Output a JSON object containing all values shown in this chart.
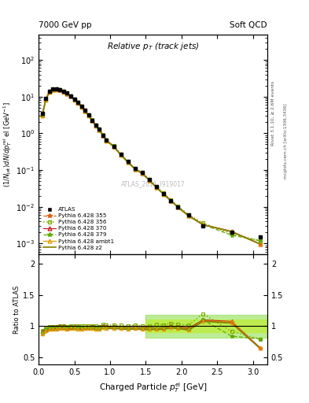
{
  "title_left": "7000 GeV pp",
  "title_right": "Soft QCD",
  "plot_title": "Relative p_{T} (track jets)",
  "watermark": "ATLAS_2011_I919017",
  "right_label_top": "Rivet 3.1.10, ≥ 2.6M events",
  "right_label_bottom": "mcplots.cern.ch [arXiv:1306.3436]",
  "atlas_x": [
    0.05,
    0.1,
    0.15,
    0.2,
    0.25,
    0.3,
    0.35,
    0.4,
    0.45,
    0.5,
    0.55,
    0.6,
    0.65,
    0.7,
    0.75,
    0.8,
    0.85,
    0.9,
    0.95,
    1.05,
    1.15,
    1.25,
    1.35,
    1.45,
    1.55,
    1.65,
    1.75,
    1.85,
    1.95,
    2.1,
    2.3,
    2.7,
    3.1
  ],
  "atlas_y": [
    3.5,
    9.0,
    14.0,
    16.0,
    16.5,
    15.5,
    14.0,
    12.5,
    10.5,
    8.5,
    7.0,
    5.5,
    4.2,
    3.2,
    2.3,
    1.7,
    1.3,
    0.9,
    0.65,
    0.45,
    0.27,
    0.17,
    0.11,
    0.085,
    0.055,
    0.035,
    0.023,
    0.015,
    0.01,
    0.006,
    0.003,
    0.002,
    0.0015
  ],
  "atlas_yerr": [
    0.2,
    0.3,
    0.4,
    0.4,
    0.4,
    0.4,
    0.4,
    0.3,
    0.3,
    0.25,
    0.2,
    0.15,
    0.12,
    0.09,
    0.07,
    0.05,
    0.04,
    0.025,
    0.018,
    0.013,
    0.008,
    0.005,
    0.003,
    0.0025,
    0.0015,
    0.001,
    0.0007,
    0.0005,
    0.0003,
    0.0002,
    0.0001,
    8e-05,
    6e-05
  ],
  "p355_x": [
    0.05,
    0.1,
    0.15,
    0.2,
    0.25,
    0.3,
    0.35,
    0.4,
    0.45,
    0.5,
    0.55,
    0.6,
    0.65,
    0.7,
    0.75,
    0.8,
    0.85,
    0.9,
    0.95,
    1.05,
    1.15,
    1.25,
    1.35,
    1.45,
    1.55,
    1.65,
    1.75,
    1.85,
    1.95,
    2.1,
    2.3,
    2.7,
    3.1
  ],
  "p355_y": [
    3.15,
    8.55,
    13.65,
    15.7,
    16.2,
    15.4,
    13.9,
    12.2,
    10.35,
    8.35,
    6.85,
    5.4,
    4.12,
    3.15,
    2.27,
    1.66,
    1.26,
    0.9,
    0.645,
    0.445,
    0.265,
    0.165,
    0.107,
    0.082,
    0.053,
    0.034,
    0.022,
    0.0148,
    0.0097,
    0.0057,
    0.0033,
    0.0021,
    0.00098
  ],
  "p356_x": [
    0.05,
    0.1,
    0.15,
    0.2,
    0.25,
    0.3,
    0.35,
    0.4,
    0.45,
    0.5,
    0.55,
    0.6,
    0.65,
    0.7,
    0.75,
    0.8,
    0.85,
    0.9,
    0.95,
    1.05,
    1.15,
    1.25,
    1.35,
    1.45,
    1.55,
    1.65,
    1.75,
    1.85,
    1.95,
    2.1,
    2.3,
    2.7,
    3.1
  ],
  "p356_y": [
    3.25,
    8.7,
    13.9,
    15.95,
    16.45,
    15.65,
    14.1,
    12.4,
    10.55,
    8.55,
    7.0,
    5.5,
    4.2,
    3.2,
    2.32,
    1.7,
    1.29,
    0.925,
    0.66,
    0.457,
    0.273,
    0.171,
    0.112,
    0.085,
    0.055,
    0.036,
    0.0235,
    0.0157,
    0.0103,
    0.0061,
    0.0036,
    0.00183,
    0.00119
  ],
  "p370_x": [
    0.05,
    0.1,
    0.15,
    0.2,
    0.25,
    0.3,
    0.35,
    0.4,
    0.45,
    0.5,
    0.55,
    0.6,
    0.65,
    0.7,
    0.75,
    0.8,
    0.85,
    0.9,
    0.95,
    1.05,
    1.15,
    1.25,
    1.35,
    1.45,
    1.55,
    1.65,
    1.75,
    1.85,
    1.95,
    2.1,
    2.3,
    2.7,
    3.1
  ],
  "p370_y": [
    3.2,
    8.6,
    13.75,
    15.8,
    16.3,
    15.5,
    14.0,
    12.3,
    10.4,
    8.4,
    6.9,
    5.4,
    4.12,
    3.14,
    2.27,
    1.66,
    1.26,
    0.9,
    0.644,
    0.445,
    0.266,
    0.166,
    0.108,
    0.083,
    0.054,
    0.034,
    0.0225,
    0.015,
    0.0099,
    0.0058,
    0.0033,
    0.00215,
    0.00098
  ],
  "p379_x": [
    0.05,
    0.1,
    0.15,
    0.2,
    0.25,
    0.3,
    0.35,
    0.4,
    0.45,
    0.5,
    0.55,
    0.6,
    0.65,
    0.7,
    0.75,
    0.8,
    0.85,
    0.9,
    0.95,
    1.05,
    1.15,
    1.25,
    1.35,
    1.45,
    1.55,
    1.65,
    1.75,
    1.85,
    1.95,
    2.1,
    2.3,
    2.7,
    3.1
  ],
  "p379_y": [
    3.18,
    8.55,
    13.65,
    15.7,
    16.2,
    15.4,
    13.9,
    12.2,
    10.35,
    8.35,
    6.85,
    5.38,
    4.1,
    3.12,
    2.26,
    1.65,
    1.255,
    0.896,
    0.64,
    0.442,
    0.264,
    0.165,
    0.107,
    0.082,
    0.053,
    0.034,
    0.0222,
    0.0148,
    0.0098,
    0.0057,
    0.0033,
    0.00168,
    0.00119
  ],
  "pambt1_x": [
    0.05,
    0.1,
    0.15,
    0.2,
    0.25,
    0.3,
    0.35,
    0.4,
    0.45,
    0.5,
    0.55,
    0.6,
    0.65,
    0.7,
    0.75,
    0.8,
    0.85,
    0.9,
    0.95,
    1.05,
    1.15,
    1.25,
    1.35,
    1.45,
    1.55,
    1.65,
    1.75,
    1.85,
    1.95,
    2.1,
    2.3,
    2.7,
    3.1
  ],
  "pambt1_y": [
    3.08,
    8.3,
    13.3,
    15.3,
    15.8,
    15.05,
    13.6,
    11.95,
    10.15,
    8.18,
    6.72,
    5.28,
    4.04,
    3.08,
    2.22,
    1.625,
    1.235,
    0.882,
    0.632,
    0.436,
    0.261,
    0.163,
    0.106,
    0.081,
    0.0525,
    0.0336,
    0.022,
    0.0147,
    0.00967,
    0.00566,
    0.00325,
    0.00213,
    0.00097
  ],
  "pz2_x": [
    0.05,
    0.1,
    0.15,
    0.2,
    0.25,
    0.3,
    0.35,
    0.4,
    0.45,
    0.5,
    0.55,
    0.6,
    0.65,
    0.7,
    0.75,
    0.8,
    0.85,
    0.9,
    0.95,
    1.05,
    1.15,
    1.25,
    1.35,
    1.45,
    1.55,
    1.65,
    1.75,
    1.85,
    1.95,
    2.1,
    2.3,
    2.7,
    3.1
  ],
  "pz2_y": [
    2.98,
    8.05,
    12.95,
    14.95,
    15.45,
    14.7,
    13.3,
    11.7,
    9.95,
    8.02,
    6.6,
    5.18,
    3.97,
    3.03,
    2.19,
    1.603,
    1.22,
    0.873,
    0.625,
    0.432,
    0.258,
    0.161,
    0.105,
    0.0802,
    0.052,
    0.0332,
    0.0218,
    0.0146,
    0.00962,
    0.00562,
    0.00323,
    0.0021,
    0.00096
  ],
  "colors": {
    "atlas": "#000000",
    "p355": "#e06010",
    "p356": "#80b000",
    "p370": "#cc2020",
    "p379": "#60a800",
    "pambt1": "#e8a000",
    "pz2": "#808000"
  },
  "xlim": [
    0.0,
    3.2
  ],
  "ylim_main": [
    0.0005,
    500.0
  ],
  "ylim_ratio": [
    0.38,
    2.15
  ],
  "ratio_yticks": [
    0.5,
    1.0,
    1.5,
    2.0
  ],
  "ratio_yticklabels": [
    "0.5",
    "1",
    "1.5",
    "2"
  ]
}
